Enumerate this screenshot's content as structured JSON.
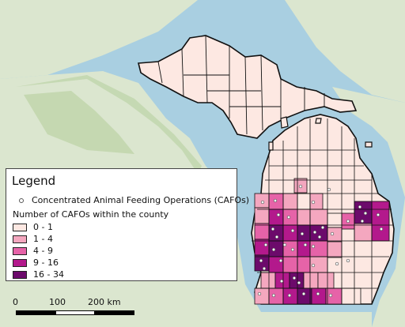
{
  "legend": {
    "title": "Legend",
    "point_label": "Concentrated Animal Feeding Operations (CAFOs)",
    "choropleth_title": "Number of CAFOs within the county",
    "classes": [
      {
        "label": "0 - 1",
        "color": "#fde8e2"
      },
      {
        "label": "1 - 4",
        "color": "#f4a7bf"
      },
      {
        "label": "4 - 9",
        "color": "#e663a8"
      },
      {
        "label": "9 - 16",
        "color": "#b3198c"
      },
      {
        "label": "16 - 34",
        "color": "#6c0a6b"
      }
    ]
  },
  "scalebar": {
    "labels": [
      "0",
      "100",
      "200 km"
    ]
  },
  "colors": {
    "water": "#a9cfe1",
    "land": "#dbe6cf",
    "forest": "#bcd3a6",
    "border": "#111111"
  }
}
